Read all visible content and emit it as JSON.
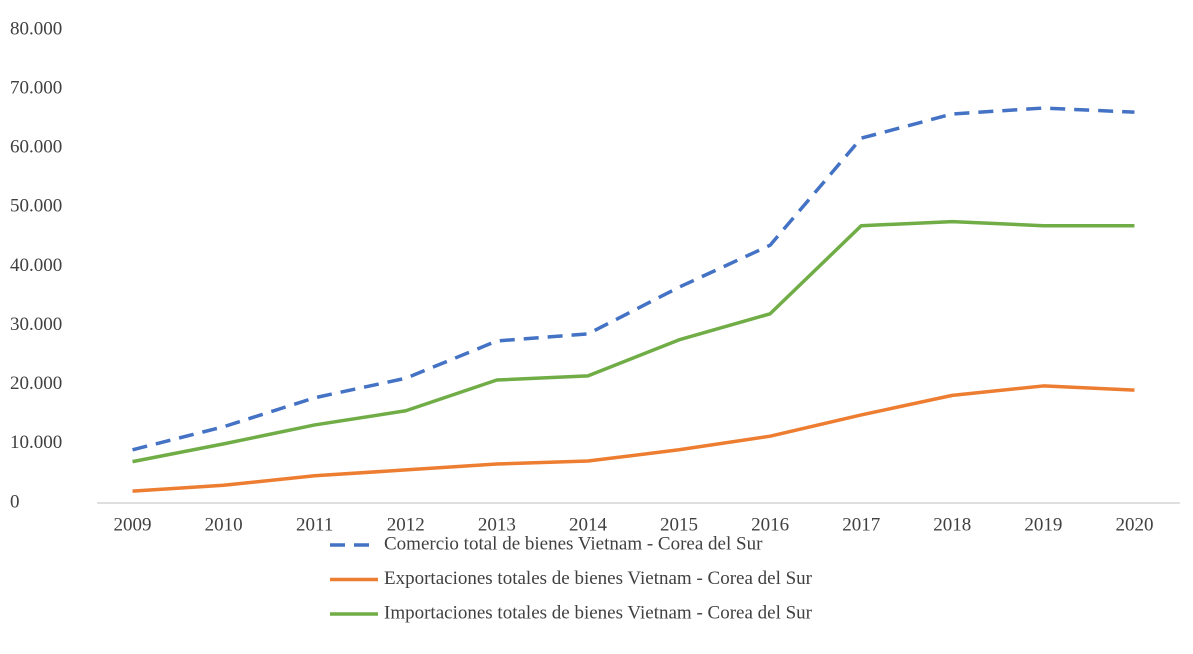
{
  "chart_data": {
    "type": "line",
    "categories": [
      "2009",
      "2010",
      "2011",
      "2012",
      "2013",
      "2014",
      "2015",
      "2016",
      "2017",
      "2018",
      "2019",
      "2020"
    ],
    "series": [
      {
        "name": "Comercio total de bienes Vietnam - Corea del Sur",
        "color": "#4472c4",
        "line_style": "dashed",
        "values": [
          9000,
          12900,
          17800,
          21100,
          27400,
          28600,
          36500,
          43600,
          61700,
          65800,
          66800,
          66100
        ]
      },
      {
        "name": "Exportaciones totales de bienes Vietnam - Corea del Sur",
        "color": "#ed7d31",
        "line_style": "solid",
        "values": [
          2000,
          3000,
          4600,
          5600,
          6600,
          7100,
          9000,
          11300,
          14900,
          18200,
          19800,
          19100
        ]
      },
      {
        "name": "Importaciones totales de bienes Vietnam - Corea del Sur",
        "color": "#70ad47",
        "line_style": "solid",
        "values": [
          7000,
          10000,
          13200,
          15600,
          20800,
          21500,
          27600,
          32000,
          46900,
          47600,
          46900,
          46900
        ]
      }
    ],
    "ylim": [
      0,
      80000
    ],
    "yticks": [
      0,
      {
        "value": 10000,
        "label": "10.000"
      },
      {
        "value": 20000,
        "label": "20.000"
      },
      {
        "value": 30000,
        "label": "30.000"
      },
      {
        "value": 40000,
        "label": "40.000"
      },
      {
        "value": 50000,
        "label": "50.000"
      },
      {
        "value": 60000,
        "label": "60.000"
      },
      {
        "value": 70000,
        "label": "70.000"
      },
      {
        "value": 80000,
        "label": "80.000"
      }
    ],
    "grid": false,
    "legend": "bottom"
  }
}
